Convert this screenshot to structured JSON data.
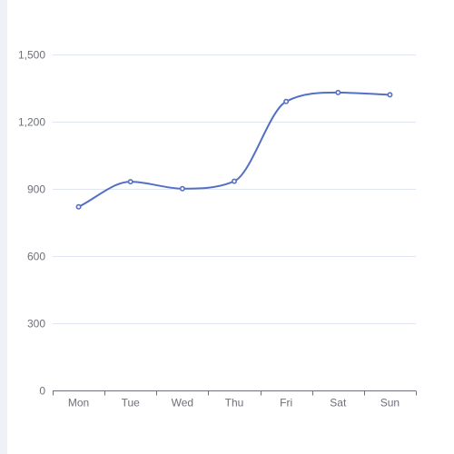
{
  "chart_data": {
    "type": "line",
    "smooth": true,
    "categories": [
      "Mon",
      "Tue",
      "Wed",
      "Thu",
      "Fri",
      "Sat",
      "Sun"
    ],
    "series": [
      {
        "values": [
          820,
          932,
          901,
          934,
          1290,
          1330,
          1320
        ],
        "color": "#5470c6"
      }
    ],
    "ylim": [
      0,
      1500
    ],
    "yticks": [
      0,
      300,
      600,
      900,
      1200,
      1500
    ],
    "ytick_labels": [
      "0",
      "300",
      "600",
      "900",
      "1,200",
      "1,500"
    ],
    "grid": true,
    "title": "",
    "xlabel": "",
    "ylabel": "",
    "colors": {
      "grid": "#e0e6f1",
      "axis": "#6e7079",
      "text": "#6e7079",
      "marker_fill": "#ffffff"
    }
  }
}
